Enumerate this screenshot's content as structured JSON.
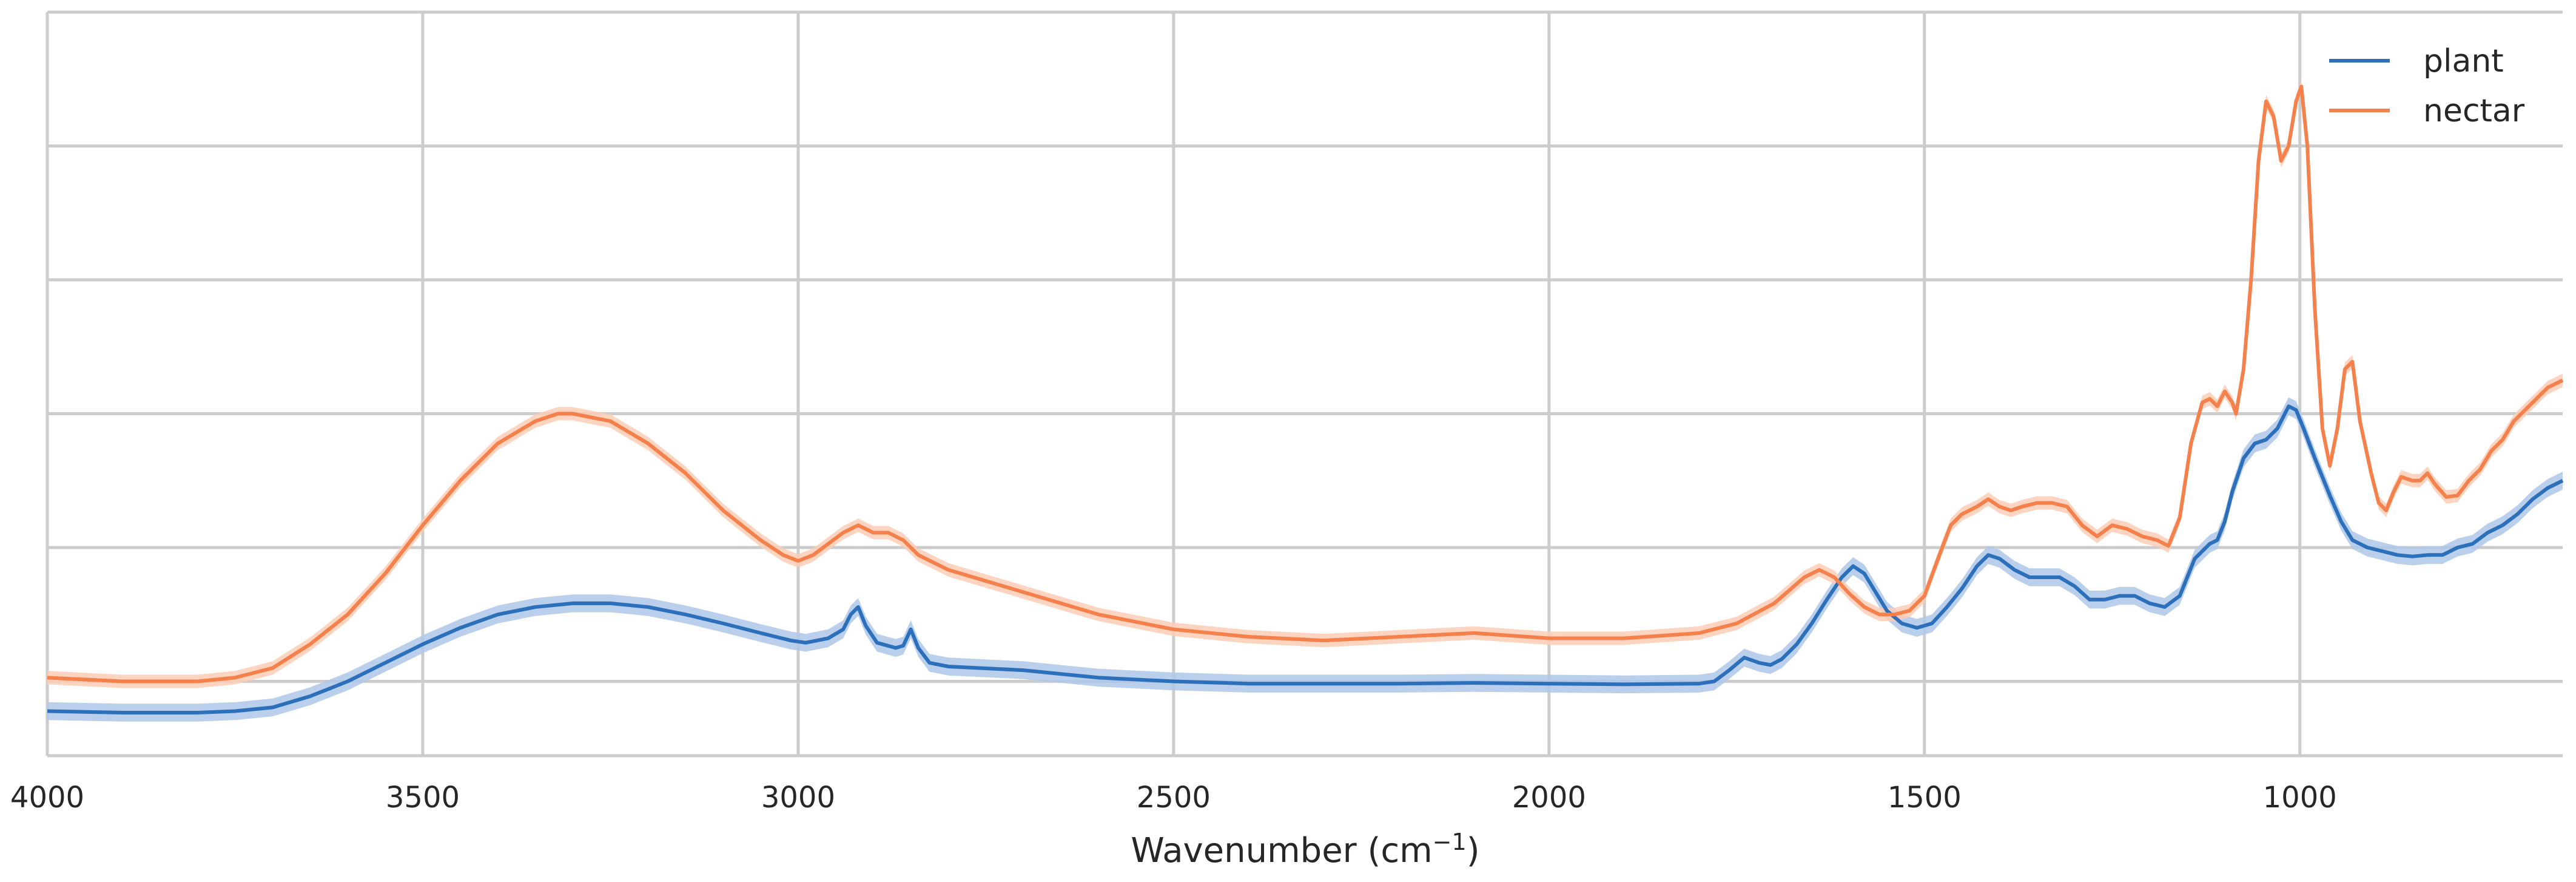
{
  "chart_data": {
    "type": "line",
    "title": "",
    "xlabel": "Wavenumber (cm",
    "xlabel_superscript": "−1",
    "xlabel_suffix": ")",
    "ylabel": "",
    "xlim": [
      4000,
      650
    ],
    "ylim": [
      0,
      1
    ],
    "x_ticks": [
      4000,
      3500,
      3000,
      2500,
      2000,
      1500,
      1000
    ],
    "x_tick_labels": [
      "4000",
      "3500",
      "3000",
      "2500",
      "2000",
      "1500",
      "1000"
    ],
    "y_ticks": [
      0.1,
      0.28,
      0.46,
      0.64,
      0.82,
      1.0
    ],
    "y_tick_labels_shown": false,
    "grid": true,
    "legend_position": "top-right",
    "series": [
      {
        "name": "plant",
        "color": "#2c6fbb",
        "band_color": "#aec7e8",
        "points": [
          [
            4000,
            0.06
          ],
          [
            3900,
            0.058
          ],
          [
            3800,
            0.058
          ],
          [
            3750,
            0.06
          ],
          [
            3700,
            0.065
          ],
          [
            3650,
            0.08
          ],
          [
            3600,
            0.1
          ],
          [
            3550,
            0.125
          ],
          [
            3500,
            0.15
          ],
          [
            3450,
            0.172
          ],
          [
            3400,
            0.19
          ],
          [
            3350,
            0.2
          ],
          [
            3300,
            0.205
          ],
          [
            3250,
            0.205
          ],
          [
            3200,
            0.2
          ],
          [
            3150,
            0.19
          ],
          [
            3100,
            0.178
          ],
          [
            3050,
            0.165
          ],
          [
            3010,
            0.155
          ],
          [
            2990,
            0.152
          ],
          [
            2960,
            0.158
          ],
          [
            2940,
            0.17
          ],
          [
            2930,
            0.19
          ],
          [
            2920,
            0.2
          ],
          [
            2910,
            0.175
          ],
          [
            2895,
            0.152
          ],
          [
            2870,
            0.145
          ],
          [
            2860,
            0.148
          ],
          [
            2850,
            0.17
          ],
          [
            2840,
            0.145
          ],
          [
            2825,
            0.125
          ],
          [
            2800,
            0.12
          ],
          [
            2700,
            0.115
          ],
          [
            2600,
            0.105
          ],
          [
            2500,
            0.1
          ],
          [
            2400,
            0.097
          ],
          [
            2300,
            0.097
          ],
          [
            2200,
            0.097
          ],
          [
            2100,
            0.098
          ],
          [
            2000,
            0.097
          ],
          [
            1900,
            0.096
          ],
          [
            1800,
            0.097
          ],
          [
            1780,
            0.1
          ],
          [
            1760,
            0.115
          ],
          [
            1740,
            0.132
          ],
          [
            1720,
            0.125
          ],
          [
            1705,
            0.122
          ],
          [
            1690,
            0.13
          ],
          [
            1670,
            0.15
          ],
          [
            1650,
            0.178
          ],
          [
            1630,
            0.21
          ],
          [
            1610,
            0.24
          ],
          [
            1595,
            0.255
          ],
          [
            1580,
            0.245
          ],
          [
            1565,
            0.22
          ],
          [
            1550,
            0.195
          ],
          [
            1530,
            0.178
          ],
          [
            1510,
            0.172
          ],
          [
            1490,
            0.178
          ],
          [
            1470,
            0.2
          ],
          [
            1450,
            0.225
          ],
          [
            1430,
            0.255
          ],
          [
            1415,
            0.27
          ],
          [
            1400,
            0.265
          ],
          [
            1380,
            0.25
          ],
          [
            1360,
            0.24
          ],
          [
            1340,
            0.24
          ],
          [
            1320,
            0.24
          ],
          [
            1300,
            0.228
          ],
          [
            1280,
            0.21
          ],
          [
            1260,
            0.21
          ],
          [
            1240,
            0.215
          ],
          [
            1220,
            0.215
          ],
          [
            1200,
            0.205
          ],
          [
            1180,
            0.2
          ],
          [
            1160,
            0.215
          ],
          [
            1140,
            0.265
          ],
          [
            1120,
            0.285
          ],
          [
            1110,
            0.29
          ],
          [
            1100,
            0.315
          ],
          [
            1090,
            0.355
          ],
          [
            1075,
            0.4
          ],
          [
            1060,
            0.42
          ],
          [
            1045,
            0.425
          ],
          [
            1030,
            0.44
          ],
          [
            1015,
            0.47
          ],
          [
            1005,
            0.465
          ],
          [
            995,
            0.44
          ],
          [
            980,
            0.4
          ],
          [
            960,
            0.35
          ],
          [
            945,
            0.315
          ],
          [
            930,
            0.29
          ],
          [
            910,
            0.28
          ],
          [
            890,
            0.275
          ],
          [
            870,
            0.27
          ],
          [
            850,
            0.268
          ],
          [
            830,
            0.27
          ],
          [
            810,
            0.27
          ],
          [
            790,
            0.28
          ],
          [
            770,
            0.285
          ],
          [
            750,
            0.3
          ],
          [
            730,
            0.31
          ],
          [
            710,
            0.325
          ],
          [
            690,
            0.345
          ],
          [
            670,
            0.36
          ],
          [
            650,
            0.37
          ]
        ]
      },
      {
        "name": "nectar",
        "color": "#f4804c",
        "band_color": "#fbcdb5",
        "points": [
          [
            4000,
            0.105
          ],
          [
            3900,
            0.1
          ],
          [
            3800,
            0.1
          ],
          [
            3750,
            0.105
          ],
          [
            3700,
            0.118
          ],
          [
            3650,
            0.15
          ],
          [
            3600,
            0.19
          ],
          [
            3550,
            0.245
          ],
          [
            3500,
            0.31
          ],
          [
            3450,
            0.37
          ],
          [
            3400,
            0.42
          ],
          [
            3350,
            0.45
          ],
          [
            3320,
            0.46
          ],
          [
            3300,
            0.46
          ],
          [
            3250,
            0.45
          ],
          [
            3200,
            0.42
          ],
          [
            3150,
            0.38
          ],
          [
            3100,
            0.33
          ],
          [
            3050,
            0.29
          ],
          [
            3020,
            0.27
          ],
          [
            3000,
            0.262
          ],
          [
            2980,
            0.27
          ],
          [
            2960,
            0.285
          ],
          [
            2940,
            0.3
          ],
          [
            2920,
            0.31
          ],
          [
            2900,
            0.3
          ],
          [
            2880,
            0.3
          ],
          [
            2860,
            0.29
          ],
          [
            2840,
            0.27
          ],
          [
            2800,
            0.25
          ],
          [
            2750,
            0.235
          ],
          [
            2700,
            0.22
          ],
          [
            2650,
            0.205
          ],
          [
            2600,
            0.19
          ],
          [
            2500,
            0.17
          ],
          [
            2400,
            0.16
          ],
          [
            2300,
            0.155
          ],
          [
            2200,
            0.16
          ],
          [
            2100,
            0.165
          ],
          [
            2000,
            0.158
          ],
          [
            1900,
            0.158
          ],
          [
            1800,
            0.165
          ],
          [
            1750,
            0.178
          ],
          [
            1700,
            0.205
          ],
          [
            1660,
            0.24
          ],
          [
            1640,
            0.25
          ],
          [
            1620,
            0.24
          ],
          [
            1600,
            0.218
          ],
          [
            1580,
            0.2
          ],
          [
            1560,
            0.19
          ],
          [
            1540,
            0.19
          ],
          [
            1520,
            0.195
          ],
          [
            1500,
            0.215
          ],
          [
            1480,
            0.27
          ],
          [
            1465,
            0.31
          ],
          [
            1450,
            0.325
          ],
          [
            1430,
            0.335
          ],
          [
            1415,
            0.345
          ],
          [
            1400,
            0.335
          ],
          [
            1385,
            0.33
          ],
          [
            1370,
            0.335
          ],
          [
            1350,
            0.34
          ],
          [
            1330,
            0.34
          ],
          [
            1310,
            0.335
          ],
          [
            1290,
            0.31
          ],
          [
            1270,
            0.295
          ],
          [
            1250,
            0.31
          ],
          [
            1230,
            0.305
          ],
          [
            1210,
            0.295
          ],
          [
            1190,
            0.29
          ],
          [
            1175,
            0.282
          ],
          [
            1160,
            0.32
          ],
          [
            1145,
            0.42
          ],
          [
            1130,
            0.475
          ],
          [
            1120,
            0.48
          ],
          [
            1110,
            0.47
          ],
          [
            1100,
            0.49
          ],
          [
            1090,
            0.475
          ],
          [
            1085,
            0.46
          ],
          [
            1075,
            0.52
          ],
          [
            1065,
            0.64
          ],
          [
            1055,
            0.8
          ],
          [
            1045,
            0.88
          ],
          [
            1035,
            0.86
          ],
          [
            1025,
            0.8
          ],
          [
            1015,
            0.82
          ],
          [
            1005,
            0.88
          ],
          [
            998,
            0.9
          ],
          [
            990,
            0.82
          ],
          [
            980,
            0.6
          ],
          [
            970,
            0.44
          ],
          [
            960,
            0.39
          ],
          [
            950,
            0.44
          ],
          [
            940,
            0.52
          ],
          [
            930,
            0.53
          ],
          [
            920,
            0.45
          ],
          [
            905,
            0.38
          ],
          [
            895,
            0.34
          ],
          [
            885,
            0.33
          ],
          [
            875,
            0.355
          ],
          [
            865,
            0.375
          ],
          [
            850,
            0.37
          ],
          [
            840,
            0.37
          ],
          [
            830,
            0.38
          ],
          [
            820,
            0.365
          ],
          [
            805,
            0.348
          ],
          [
            790,
            0.35
          ],
          [
            775,
            0.37
          ],
          [
            760,
            0.385
          ],
          [
            745,
            0.41
          ],
          [
            730,
            0.425
          ],
          [
            715,
            0.45
          ],
          [
            700,
            0.465
          ],
          [
            685,
            0.48
          ],
          [
            670,
            0.495
          ],
          [
            650,
            0.505
          ]
        ]
      }
    ]
  }
}
